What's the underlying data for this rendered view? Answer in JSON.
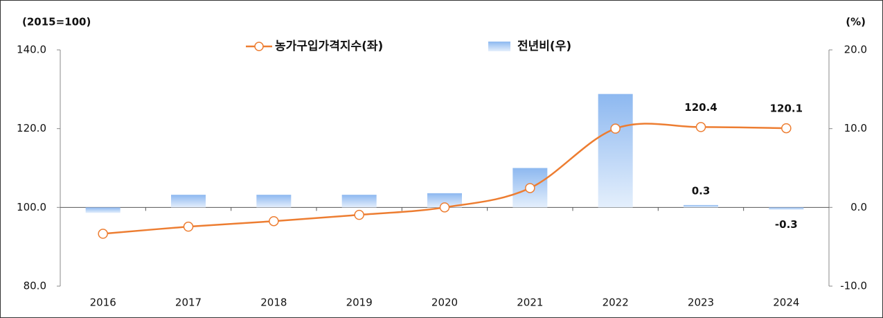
{
  "chart_data": {
    "type": "bar-line",
    "y_label": "(2015=100)",
    "y2_label": "(%)",
    "categories": [
      "2016",
      "2017",
      "2018",
      "2019",
      "2020",
      "2021",
      "2022",
      "2023",
      "2024"
    ],
    "series": [
      {
        "name": "농가구입가격지수(좌)",
        "type": "line",
        "color": "#ed7d31",
        "axis": "y",
        "values": [
          93.3,
          95.1,
          96.5,
          98.1,
          100.0,
          104.9,
          120.0,
          120.4,
          120.1
        ],
        "value_labels": [
          null,
          null,
          null,
          null,
          null,
          null,
          null,
          "120.4",
          "120.1"
        ]
      },
      {
        "name": "전년비(우)",
        "type": "bar",
        "color": "#9dc3f5",
        "axis": "y2",
        "values": [
          -0.7,
          1.6,
          1.6,
          1.6,
          1.8,
          5.0,
          14.4,
          0.3,
          -0.3
        ],
        "value_labels": [
          null,
          null,
          null,
          null,
          null,
          null,
          null,
          "0.3",
          "-0.3"
        ]
      }
    ],
    "ylim": [
      80,
      140
    ],
    "yticks": [
      {
        "value": 80,
        "label": "80.0"
      },
      {
        "value": 100,
        "label": "100.0"
      },
      {
        "value": 120,
        "label": "120.0"
      },
      {
        "value": 140,
        "label": "140.0"
      }
    ],
    "y2lim": [
      -10,
      20
    ],
    "y2ticks": [
      {
        "value": -10,
        "label": "-10.0"
      },
      {
        "value": 0,
        "label": "0.0"
      },
      {
        "value": 10,
        "label": "10.0"
      },
      {
        "value": 20,
        "label": "20.0"
      }
    ],
    "legend": "top"
  }
}
